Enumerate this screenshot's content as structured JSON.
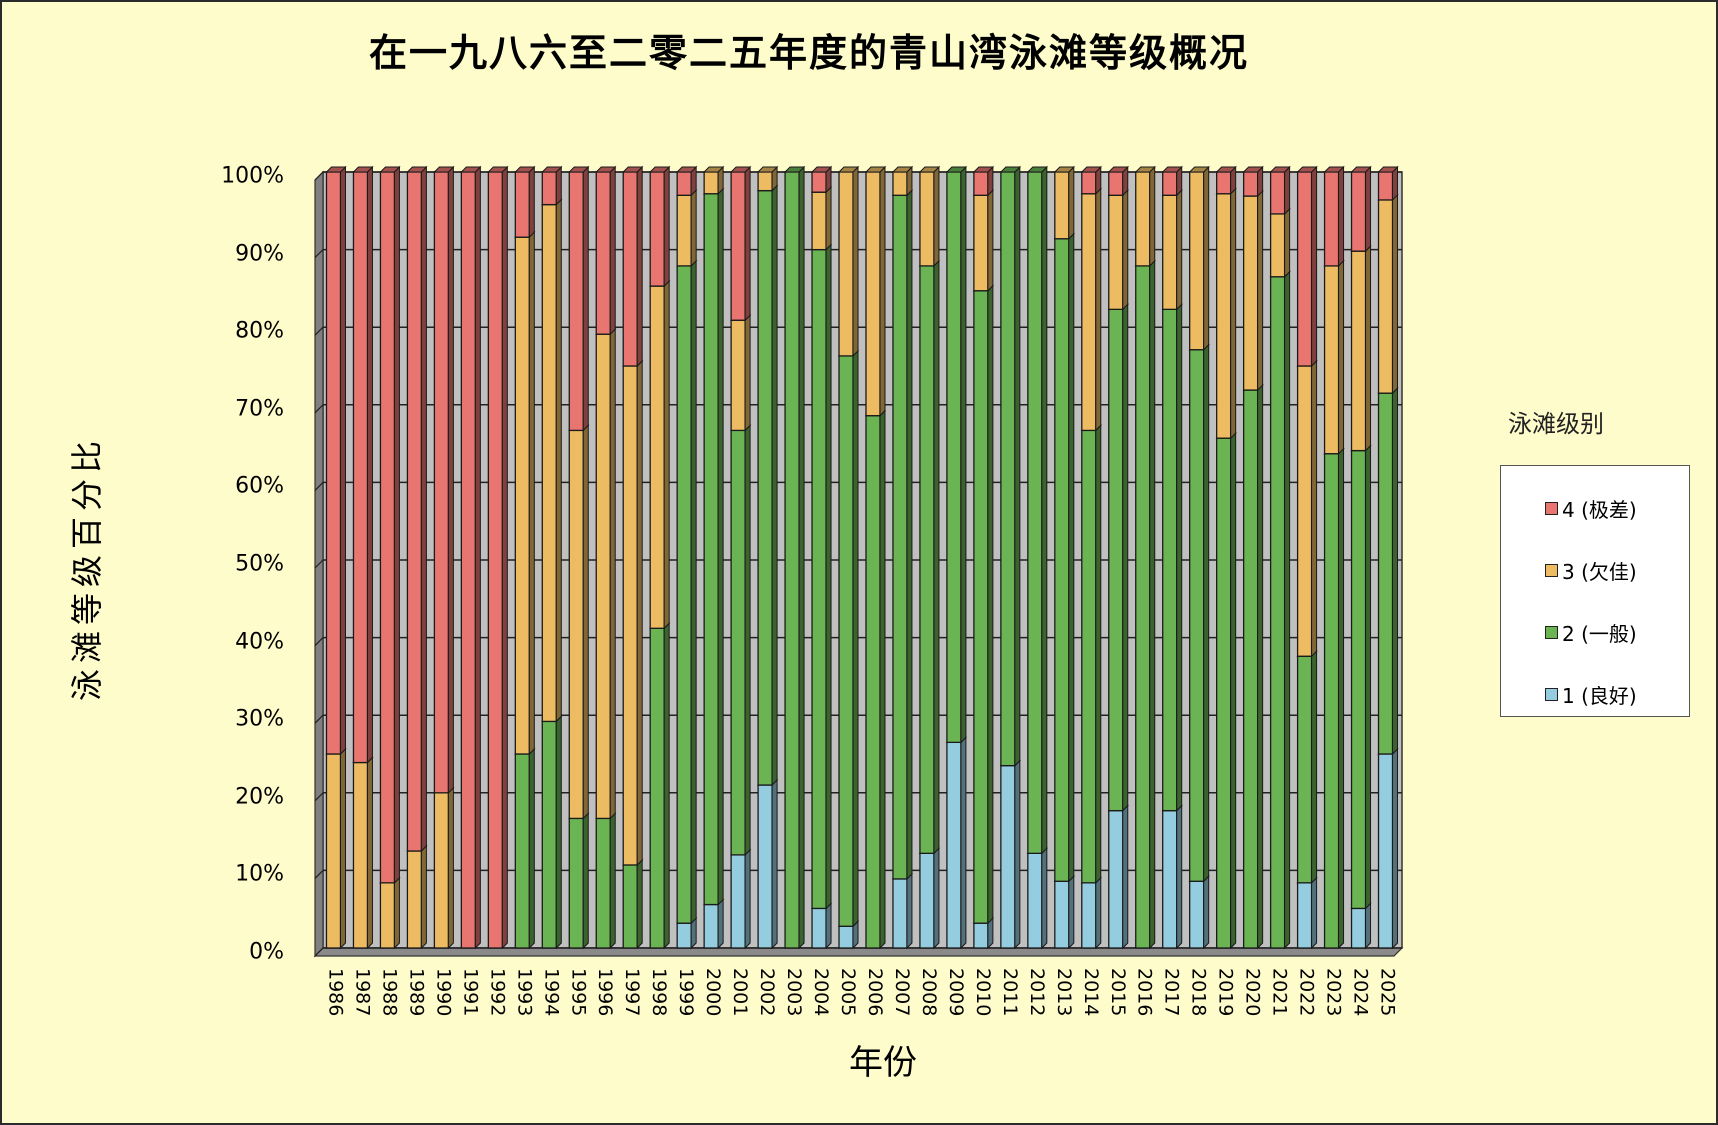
{
  "title": "在一九八六至二零二五年度的青山湾泳滩等级概况",
  "y_axis_title": "泳滩等级百分比",
  "x_axis_title": "年份",
  "legend": {
    "title": "泳滩级别",
    "items": [
      {
        "label": "4 (极差)",
        "color": "#e8756f"
      },
      {
        "label": "3 (欠佳)",
        "color": "#edbc62"
      },
      {
        "label": "2 (一般)",
        "color": "#6ab454"
      },
      {
        "label": "1 (良好)",
        "color": "#95cde0"
      }
    ]
  },
  "chart_data": {
    "type": "bar",
    "stacked": "percent",
    "style": "3d-stacked-column",
    "title": "在一九八六至二零二五年度的青山湾泳滩等级概况",
    "xlabel": "年份",
    "ylabel": "泳滩等级百分比",
    "ylim": [
      0,
      100
    ],
    "yticks": [
      "0%",
      "10%",
      "20%",
      "30%",
      "40%",
      "50%",
      "60%",
      "70%",
      "80%",
      "90%",
      "100%"
    ],
    "grid": true,
    "legend_position": "right",
    "categories": [
      "1986",
      "1987",
      "1988",
      "1989",
      "1990",
      "1991",
      "1992",
      "1993",
      "1994",
      "1995",
      "1996",
      "1997",
      "1998",
      "1999",
      "2000",
      "2001",
      "2002",
      "2003",
      "2004",
      "2005",
      "2006",
      "2007",
      "2008",
      "2009",
      "2010",
      "2011",
      "2012",
      "2013",
      "2014",
      "2015",
      "2016",
      "2017",
      "2018",
      "2019",
      "2020",
      "2021",
      "2022",
      "2023",
      "2024",
      "2025"
    ],
    "series": [
      {
        "name": "1 (良好)",
        "color": "#95cde0",
        "values": [
          0,
          0,
          0,
          0,
          0,
          0,
          0,
          0,
          0,
          0,
          0,
          0,
          0,
          3.2,
          5.6,
          12,
          21,
          0,
          5.1,
          2.8,
          0,
          8.9,
          12.2,
          26.5,
          3.2,
          23.5,
          12.2,
          8.6,
          8.4,
          17.7,
          0,
          17.7,
          8.6,
          0,
          0,
          0,
          8.4,
          0,
          5.1,
          25
        ]
      },
      {
        "name": "2 (一般)",
        "color": "#6ab454",
        "values": [
          0,
          0,
          0,
          0,
          0,
          0,
          0,
          25,
          29.2,
          16.7,
          16.7,
          10.7,
          41.2,
          84.7,
          91.6,
          54.7,
          76.6,
          100,
          84.9,
          73.5,
          68.6,
          88.1,
          75.7,
          73.5,
          81.5,
          76.5,
          87.8,
          82.8,
          58.3,
          64.6,
          87.9,
          64.6,
          68.5,
          65.7,
          71.9,
          86.5,
          29.2,
          63.7,
          59,
          46.5
        ]
      },
      {
        "name": "3 (欠佳)",
        "color": "#edbc62",
        "values": [
          25,
          23.9,
          8.4,
          12.5,
          20,
          0,
          0,
          66.6,
          66.6,
          50,
          62.4,
          64.3,
          44.1,
          9.1,
          2.8,
          14.2,
          2.4,
          0,
          7.4,
          23.7,
          31.4,
          3,
          12.1,
          0,
          12.3,
          0,
          0,
          8.6,
          30.5,
          14.7,
          12.1,
          14.7,
          22.9,
          31.5,
          25,
          8.1,
          37.4,
          24.2,
          25.7,
          24.9
        ]
      },
      {
        "name": "4 (极差)",
        "color": "#e8756f",
        "values": [
          75,
          76.1,
          91.6,
          87.5,
          80,
          100,
          100,
          8.4,
          4.2,
          33.3,
          20.9,
          25,
          14.7,
          3,
          0,
          19.1,
          0,
          0,
          2.6,
          0,
          0,
          0,
          0,
          0,
          3,
          0,
          0,
          0,
          2.8,
          3,
          0,
          3,
          0,
          2.8,
          3.1,
          5.4,
          25,
          12.1,
          10.2,
          3.6
        ]
      }
    ]
  }
}
